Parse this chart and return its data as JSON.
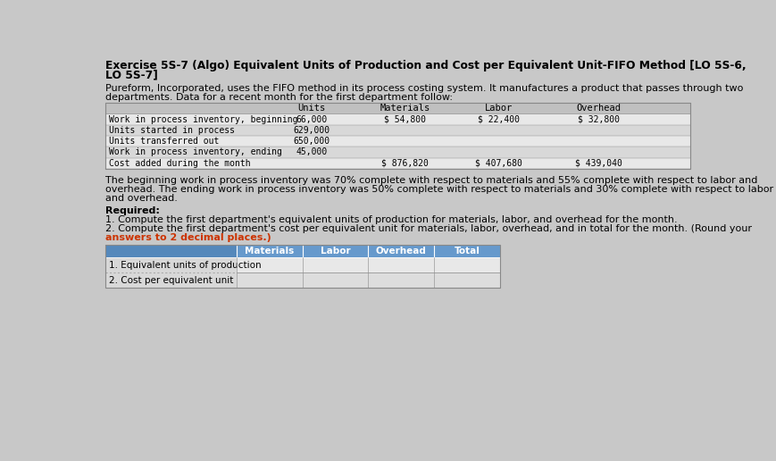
{
  "title_line1": "Exercise 5S-7 (Algo) Equivalent Units of Production and Cost per Equivalent Unit-FIFO Method [LO 5S-6,",
  "title_line2": "LO 5S-7]",
  "intro_line1": "Pureform, Incorporated, uses the FIFO method in its process costing system. It manufactures a product that passes through two",
  "intro_line2": "departments. Data for a recent month for the first department follow:",
  "data_table_headers": [
    "Units",
    "Materials",
    "Labor",
    "Overhead"
  ],
  "data_table_rows": [
    [
      "Work in process inventory, beginning",
      "66,000",
      "$ 54,800",
      "$ 22,400",
      "$ 32,800"
    ],
    [
      "Units started in process",
      "629,000",
      "",
      "",
      ""
    ],
    [
      "Units transferred out",
      "650,000",
      "",
      "",
      ""
    ],
    [
      "Work in process inventory, ending",
      "45,000",
      "",
      "",
      ""
    ],
    [
      "Cost added during the month",
      "",
      "$ 876,820",
      "$ 407,680",
      "$ 439,040"
    ]
  ],
  "desc_line1": "The beginning work in process inventory was 70% complete with respect to materials and 55% complete with respect to labor and",
  "desc_line2": "overhead. The ending work in process inventory was 50% complete with respect to materials and 30% complete with respect to labor",
  "desc_line3": "and overhead.",
  "req_header": "Required:",
  "req_item1": "1. Compute the first department's equivalent units of production for materials, labor, and overhead for the month.",
  "req_item2_normal": "2. Compute the first department's cost per equivalent unit for materials, labor, overhead, and in total for the month. (Round your",
  "req_item2_bold": "answers to 2 decimal places.)",
  "ans_headers": [
    "Materials",
    "Labor",
    "Overhead",
    "Total"
  ],
  "ans_row1": "1. Equivalent units of production",
  "ans_row2": "2. Cost per equivalent unit",
  "bg_color": "#c8c8c8",
  "page_bg": "#c8c8c8",
  "table_header_bg": "#c0c0c0",
  "table_row_even": "#d8d8d8",
  "table_row_odd": "#e8e8e8",
  "ans_header_bg": "#6699cc",
  "ans_row_bg": "#e8e8e8",
  "ans_label_bg": "#d0d0d0",
  "text_color": "#000000",
  "bold_orange": "#cc3300",
  "white": "#ffffff",
  "border_color": "#888888"
}
